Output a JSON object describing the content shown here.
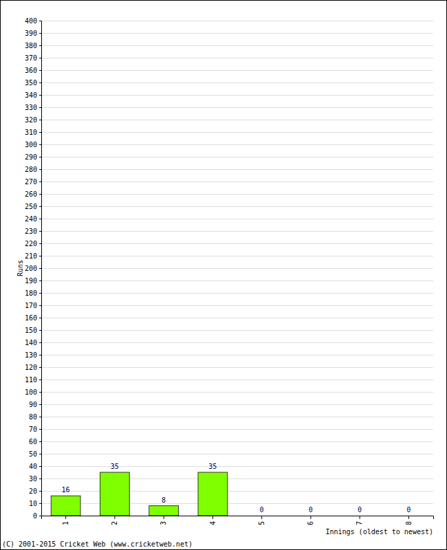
{
  "chart_data": {
    "type": "bar",
    "categories": [
      "1",
      "2",
      "3",
      "4",
      "5",
      "6",
      "7",
      "8"
    ],
    "values": [
      16,
      35,
      8,
      35,
      0,
      0,
      0,
      0
    ],
    "color": "#80ff00",
    "ylim": [
      0,
      400
    ],
    "yticks": [
      0,
      10,
      20,
      30,
      40,
      50,
      60,
      70,
      80,
      90,
      100,
      110,
      120,
      130,
      140,
      150,
      160,
      170,
      180,
      190,
      200,
      210,
      220,
      230,
      240,
      250,
      260,
      270,
      280,
      290,
      300,
      310,
      320,
      330,
      340,
      350,
      360,
      370,
      380,
      390,
      400
    ],
    "y_label": "Runs",
    "x_label": "Innings (oldest to newest)",
    "annotations": [
      "(C) 2001-2015 Cricket Web (www.cricketweb.net)"
    ],
    "grid": true,
    "data_labels": true
  }
}
